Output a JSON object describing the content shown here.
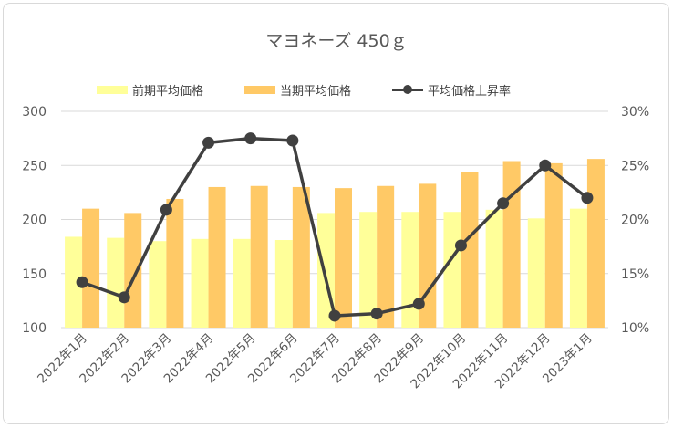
{
  "chart_data": {
    "type": "bar",
    "title": "マヨネーズ 450ｇ",
    "categories": [
      "2022年1月",
      "2022年2月",
      "2022年3月",
      "2022年4月",
      "2022年5月",
      "2022年6月",
      "2022年7月",
      "2022年8月",
      "2022年9月",
      "2022年10月",
      "2022年11月",
      "2022年12月",
      "2023年1月"
    ],
    "series": [
      {
        "name": "前期平均価格",
        "type": "bar",
        "axis": "left",
        "color": "#ffff99",
        "values": [
          184,
          183,
          180,
          182,
          182,
          181,
          206,
          207,
          207,
          207,
          209,
          201,
          210
        ]
      },
      {
        "name": "当期平均価格",
        "type": "bar",
        "axis": "left",
        "color": "#ffc966",
        "values": [
          210,
          206,
          219,
          230,
          231,
          230,
          229,
          231,
          233,
          244,
          254,
          252,
          256
        ]
      },
      {
        "name": "平均価格上昇率",
        "type": "line",
        "axis": "right",
        "color": "#404040",
        "values": [
          14.2,
          12.8,
          20.9,
          27.1,
          27.5,
          27.3,
          11.1,
          11.3,
          12.2,
          17.6,
          21.5,
          25.0,
          22.0
        ]
      }
    ],
    "ylim": [
      100,
      300
    ],
    "y_ticks": [
      "100",
      "150",
      "200",
      "250",
      "300"
    ],
    "y2lim": [
      10,
      30
    ],
    "y2_ticks": [
      "10%",
      "15%",
      "20%",
      "25%",
      "30%"
    ],
    "legend_position": "top",
    "grid": true
  }
}
